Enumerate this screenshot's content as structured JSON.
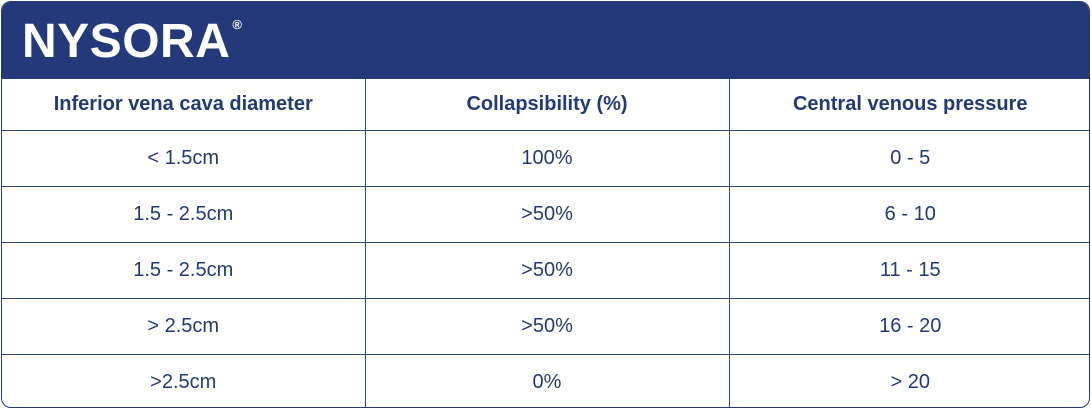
{
  "brand": {
    "name": "NYSORA",
    "registered_mark": "®",
    "header_color": "#24397a",
    "text_color": "#233a76"
  },
  "table": {
    "columns": [
      "Inferior vena cava diameter",
      "Collapsibility (%)",
      "Central venous pressure"
    ],
    "rows": [
      [
        "< 1.5cm",
        "100%",
        "0 - 5"
      ],
      [
        "1.5 - 2.5cm",
        ">50%",
        "6 - 10"
      ],
      [
        "1.5 - 2.5cm",
        ">50%",
        "11 - 15"
      ],
      [
        "> 2.5cm",
        ">50%",
        "16 - 20"
      ],
      [
        ">2.5cm",
        "0%",
        "> 20"
      ]
    ]
  }
}
